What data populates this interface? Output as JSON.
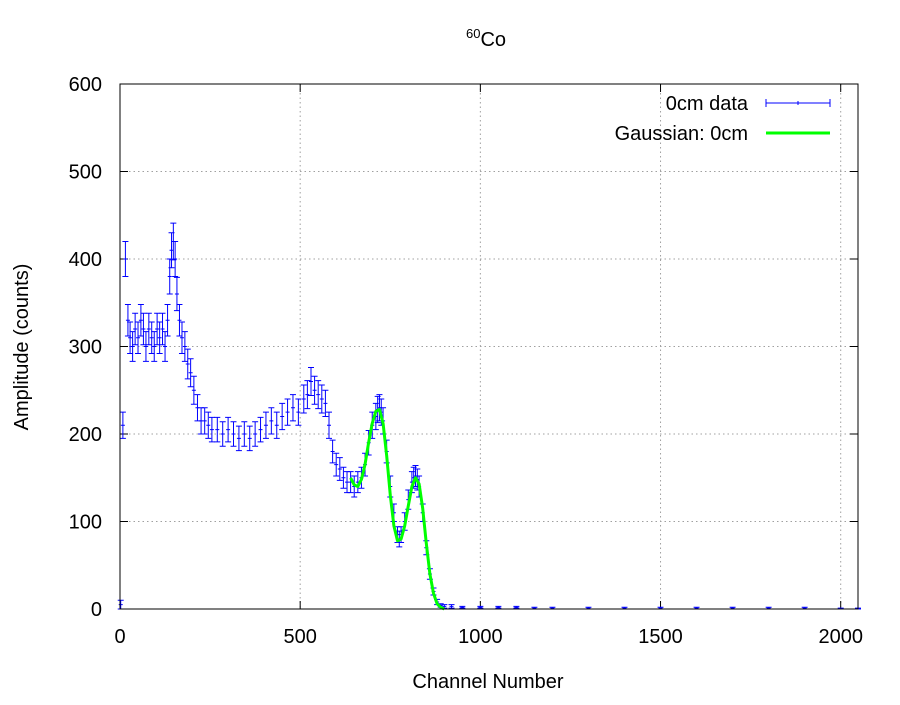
{
  "chart_data": {
    "type": "scatter",
    "title": {
      "superscript": "60",
      "text": "Co"
    },
    "xlabel": "Channel Number",
    "ylabel": "Amplitude (counts)",
    "xlim": [
      0,
      2048
    ],
    "ylim": [
      0,
      600
    ],
    "xticks": [
      0,
      500,
      1000,
      1500,
      2000
    ],
    "yticks": [
      0,
      100,
      200,
      300,
      400,
      500,
      600
    ],
    "grid": true,
    "legend_position": "top-right",
    "colors": {
      "data": "#0000ff",
      "fit": "#00ff00",
      "grid": "#a0a0a0",
      "axis": "#000000"
    },
    "series": [
      {
        "name": "0cm data",
        "style": "points-with-errorbars",
        "x": [
          2,
          8,
          15,
          22,
          28,
          35,
          42,
          50,
          58,
          65,
          72,
          80,
          88,
          95,
          103,
          110,
          118,
          125,
          132,
          138,
          143,
          148,
          153,
          158,
          165,
          172,
          180,
          188,
          196,
          205,
          215,
          225,
          235,
          245,
          255,
          270,
          285,
          300,
          315,
          330,
          345,
          360,
          375,
          390,
          405,
          420,
          435,
          450,
          465,
          480,
          495,
          510,
          520,
          530,
          540,
          550,
          560,
          570,
          580,
          590,
          600,
          610,
          620,
          630,
          640,
          650,
          660,
          670,
          680,
          690,
          700,
          710,
          715,
          720,
          725,
          730,
          740,
          750,
          760,
          770,
          775,
          780,
          790,
          800,
          810,
          815,
          820,
          825,
          830,
          840,
          850,
          860,
          870,
          880,
          890,
          900,
          920,
          950,
          1000,
          1050,
          1100,
          1150,
          1200,
          1300,
          1400,
          1500,
          1600,
          1700,
          1800,
          1900,
          2000,
          2048
        ],
        "y": [
          5,
          210,
          400,
          330,
          310,
          300,
          320,
          310,
          330,
          320,
          300,
          320,
          310,
          300,
          320,
          310,
          320,
          300,
          330,
          380,
          410,
          420,
          400,
          360,
          330,
          310,
          300,
          280,
          270,
          250,
          230,
          215,
          215,
          210,
          205,
          205,
          200,
          205,
          200,
          195,
          200,
          195,
          200,
          205,
          210,
          215,
          210,
          220,
          225,
          230,
          225,
          240,
          245,
          260,
          250,
          245,
          240,
          235,
          210,
          180,
          165,
          160,
          150,
          145,
          145,
          140,
          145,
          150,
          165,
          190,
          210,
          220,
          228,
          230,
          225,
          215,
          180,
          140,
          110,
          85,
          80,
          85,
          100,
          125,
          145,
          150,
          152,
          148,
          140,
          110,
          70,
          40,
          20,
          8,
          4,
          3,
          3,
          2,
          2,
          2,
          2,
          1,
          1,
          1,
          1,
          1,
          1,
          1,
          1,
          1,
          0,
          0
        ],
        "err": [
          5,
          15,
          20,
          18,
          18,
          17,
          18,
          18,
          18,
          18,
          17,
          18,
          18,
          17,
          18,
          18,
          18,
          17,
          18,
          20,
          20,
          21,
          20,
          19,
          18,
          18,
          17,
          17,
          16,
          16,
          15,
          15,
          15,
          15,
          14,
          14,
          14,
          14,
          14,
          14,
          14,
          14,
          14,
          14,
          15,
          15,
          15,
          15,
          15,
          15,
          15,
          16,
          16,
          16,
          16,
          16,
          16,
          15,
          15,
          13,
          13,
          13,
          12,
          12,
          12,
          12,
          12,
          12,
          13,
          14,
          15,
          15,
          15,
          15,
          15,
          15,
          13,
          12,
          10,
          9,
          9,
          9,
          10,
          11,
          12,
          12,
          12,
          12,
          12,
          10,
          8,
          6,
          4,
          3,
          2,
          2,
          2,
          1,
          1,
          1,
          1,
          1,
          1,
          1,
          1,
          1,
          1,
          1,
          1,
          1,
          1,
          1
        ]
      },
      {
        "name": "Gaussian: 0cm",
        "style": "line",
        "x": [
          640,
          650,
          660,
          670,
          680,
          690,
          700,
          710,
          720,
          730,
          740,
          750,
          760,
          770,
          780,
          790,
          800,
          810,
          820,
          830,
          840,
          850,
          860,
          870,
          880,
          890,
          900
        ],
        "y": [
          150,
          142,
          140,
          148,
          165,
          190,
          212,
          226,
          228,
          212,
          175,
          130,
          95,
          78,
          80,
          95,
          118,
          140,
          150,
          143,
          115,
          75,
          40,
          18,
          6,
          2,
          0
        ]
      }
    ]
  }
}
